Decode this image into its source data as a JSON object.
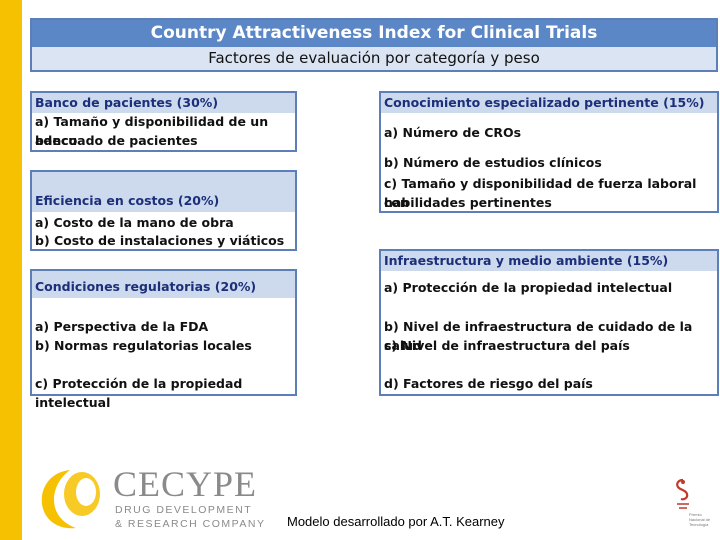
{
  "header": {
    "title": "Country Attractiveness Index for Clinical Trials",
    "subtitle": "Factores de evaluación por categoría y peso"
  },
  "left_boxes": [
    {
      "title": "Banco de pacientes (30%)",
      "items": [
        "a) Tamaño y disponibilidad de un banco",
        "adecuado de pacientes"
      ]
    },
    {
      "title": "Eficiencia en costos (20%)",
      "items": [
        "a) Costo de la mano de obra",
        "b) Costo de instalaciones y viáticos"
      ]
    },
    {
      "title": "Condiciones regulatorias (20%)",
      "items": [
        "a) Perspectiva de la FDA",
        "b) Normas regulatorias locales",
        "c) Protección de la propiedad intelectual"
      ]
    }
  ],
  "right_boxes": [
    {
      "title": "Conocimiento especializado pertinente (15%)",
      "items": [
        "a) Número de CROs",
        "b) Número de estudios clínicos",
        "c) Tamaño y disponibilidad de fuerza laboral con",
        "habilidades pertinentes"
      ]
    },
    {
      "title": "Infraestructura y medio ambiente (15%)",
      "items": [
        "a) Protección de la propiedad intelectual",
        "b) Nivel de infraestructura de cuidado de la salud",
        "c) Nivel de infraestructura del país",
        "d) Factores de riesgo del país"
      ]
    }
  ],
  "footer": {
    "caption": "Modelo desarrollado por A.T. Kearney",
    "logo_name": "CECYPE",
    "logo_sub_1": "DRUG DEVELOPMENT",
    "logo_sub_2": "& RESEARCH COMPANY",
    "right_logo_text": "Premio Nacional de Tecnología"
  },
  "colors": {
    "accent_yellow": "#f6c100",
    "header_blue": "#5b87c7",
    "box_border": "#5b7fb6",
    "box_header_bg": "#cdd9ec",
    "box_header_text": "#1b2f7a"
  },
  "icons": [
    "cecype-logo-icon",
    "award-logo-icon"
  ]
}
